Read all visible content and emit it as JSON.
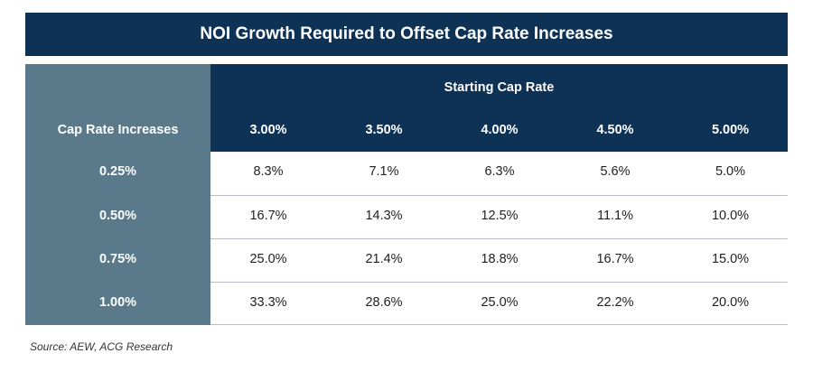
{
  "title": "NOI Growth Required to Offset Cap Rate Increases",
  "table": {
    "row_header_label": "Cap Rate Increases",
    "group_header_label": "Starting Cap Rate",
    "columns": [
      "3.00%",
      "3.50%",
      "4.00%",
      "4.50%",
      "5.00%"
    ],
    "rows": [
      {
        "label": "0.25%",
        "values": [
          "8.3%",
          "7.1%",
          "6.3%",
          "5.6%",
          "5.0%"
        ]
      },
      {
        "label": "0.50%",
        "values": [
          "16.7%",
          "14.3%",
          "12.5%",
          "11.1%",
          "10.0%"
        ]
      },
      {
        "label": "0.75%",
        "values": [
          "25.0%",
          "21.4%",
          "18.8%",
          "16.7%",
          "15.0%"
        ]
      },
      {
        "label": "1.00%",
        "values": [
          "33.3%",
          "28.6%",
          "25.0%",
          "22.2%",
          "20.0%"
        ]
      }
    ]
  },
  "source": "Source: AEW, ACG Research",
  "colors": {
    "navy": "#0e3256",
    "slate": "#5a7a8c",
    "divider": "#b9bec4"
  }
}
